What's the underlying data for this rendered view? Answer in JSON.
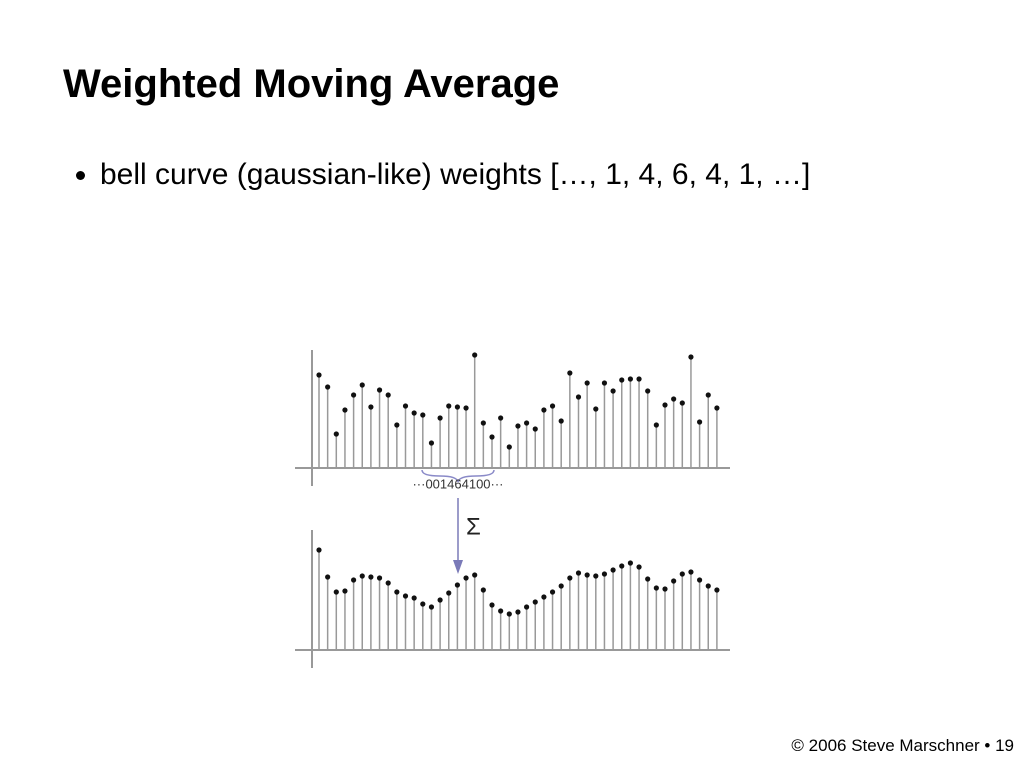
{
  "title": "Weighted Moving Average",
  "bullets": [
    "bell curve (gaussian-like) weights […, 1, 4, 6, 4, 1, …]"
  ],
  "figure": {
    "kernel_label": "···001464100···",
    "sum_label": "Σ",
    "top_signal": {
      "values": [
        93,
        81,
        34,
        58,
        73,
        83,
        61,
        78,
        73,
        43,
        62,
        55,
        53,
        25,
        50,
        62,
        61,
        60,
        113,
        45,
        31,
        50,
        21,
        42,
        45,
        39,
        58,
        62,
        47,
        95,
        71,
        85,
        59,
        85,
        77,
        88,
        89,
        89,
        77,
        43,
        63,
        69,
        65,
        111,
        46,
        73,
        60
      ]
    },
    "bottom_signal": {
      "values": [
        100,
        73,
        58,
        59,
        70,
        74,
        73,
        72,
        67,
        58,
        54,
        52,
        46,
        43,
        50,
        57,
        65,
        72,
        75,
        60,
        45,
        39,
        36,
        38,
        43,
        48,
        53,
        58,
        64,
        72,
        77,
        75,
        74,
        76,
        80,
        84,
        87,
        83,
        71,
        62,
        61,
        69,
        76,
        78,
        70,
        64,
        60
      ]
    }
  },
  "footer": "© 2006 Steve Marschner • 19"
}
